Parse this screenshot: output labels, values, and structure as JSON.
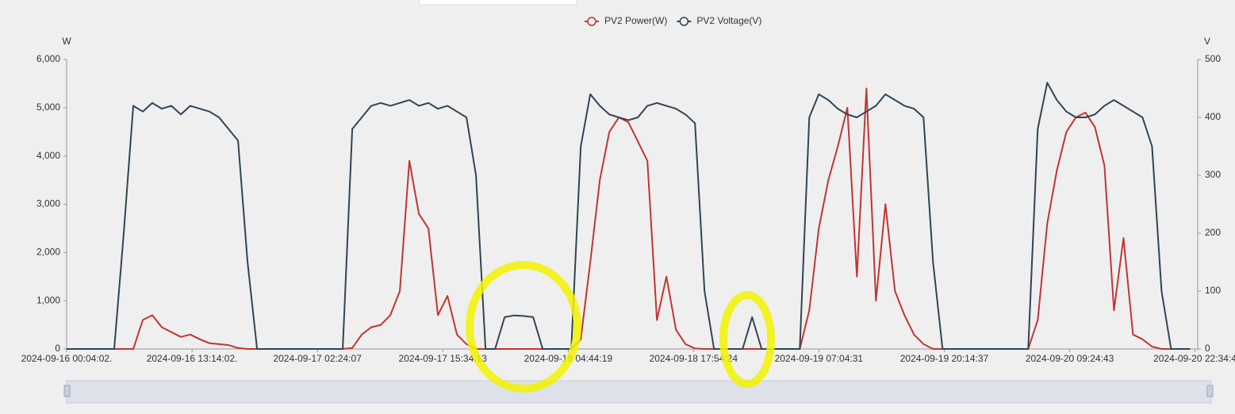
{
  "chart_data": {
    "type": "line",
    "legend_position": "top",
    "y_axis_label": "W",
    "y2_axis_label": "V",
    "x": [
      0,
      1,
      2,
      3,
      4,
      5,
      6,
      7,
      8,
      9,
      10,
      11,
      12,
      13,
      14,
      15,
      16,
      17,
      18,
      19,
      20,
      21,
      22,
      23,
      24,
      25,
      26,
      27,
      28,
      29,
      30,
      31,
      32,
      33,
      34,
      35,
      36,
      37,
      38,
      39,
      40,
      41,
      42,
      43,
      44,
      45,
      46,
      47,
      48,
      49,
      50,
      51,
      52,
      53,
      54,
      55,
      56,
      57,
      58,
      59,
      60,
      61,
      62,
      63,
      64,
      65,
      66,
      67,
      68,
      69,
      70,
      71,
      72,
      73,
      74,
      75,
      76,
      77,
      78,
      79,
      80,
      81,
      82,
      83,
      84,
      85,
      86,
      87,
      88,
      89,
      90,
      91,
      92,
      93,
      94,
      95,
      96,
      97,
      98,
      99,
      100,
      101,
      102,
      103,
      104,
      105,
      106,
      107,
      108,
      109,
      110,
      111,
      112,
      113,
      114,
      115,
      116,
      117,
      118
    ],
    "xlim": [
      0,
      118.8
    ],
    "xticks": [
      {
        "value": 0,
        "label": "2024-09-16 00:04:02."
      },
      {
        "value": 13.17,
        "label": "2024-09-16 13:14:02."
      },
      {
        "value": 26.34,
        "label": "2024-09-17 02:24:07"
      },
      {
        "value": 39.51,
        "label": "2024-09-17 15:34:13"
      },
      {
        "value": 52.68,
        "label": "2024-09-18 04:44:19"
      },
      {
        "value": 65.84,
        "label": "2024-09-18 17:54:24"
      },
      {
        "value": 79.01,
        "label": "2024-09-19 07:04:31"
      },
      {
        "value": 92.18,
        "label": "2024-09-19 20:14:37"
      },
      {
        "value": 105.35,
        "label": "2024-09-20 09:24:43"
      },
      {
        "value": 118.51,
        "label": "2024-09-20 22:34:4"
      }
    ],
    "ylim": [
      0,
      6000
    ],
    "yticks": [
      0,
      {
        "value": 1000,
        "label": "1,000"
      },
      {
        "value": 2000,
        "label": "2,000"
      },
      {
        "value": 3000,
        "label": "3,000"
      },
      {
        "value": 4000,
        "label": "4,000"
      },
      {
        "value": 5000,
        "label": "5,000"
      },
      {
        "value": 6000,
        "label": "6,000"
      }
    ],
    "y2lim": [
      0,
      500
    ],
    "y2ticks": [
      0,
      100,
      200,
      300,
      400,
      500
    ],
    "series": [
      {
        "name": "PV2 Power(W)",
        "color": "#c23531",
        "values": [
          0,
          0,
          0,
          0,
          0,
          0,
          0,
          0,
          600,
          700,
          450,
          350,
          250,
          300,
          200,
          120,
          100,
          80,
          20,
          0,
          0,
          0,
          0,
          0,
          0,
          0,
          0,
          0,
          0,
          0,
          20,
          300,
          450,
          500,
          700,
          1200,
          3900,
          2800,
          2500,
          700,
          1100,
          300,
          100,
          0,
          0,
          0,
          0,
          0,
          0,
          0,
          0,
          0,
          0,
          0,
          200,
          1800,
          3500,
          4500,
          4800,
          4700,
          4300,
          3900,
          600,
          1500,
          400,
          100,
          10,
          0,
          0,
          0,
          0,
          0,
          0,
          0,
          0,
          0,
          0,
          0,
          800,
          2500,
          3500,
          4200,
          5000,
          1500,
          5400,
          1000,
          3000,
          1200,
          700,
          300,
          100,
          0,
          0,
          0,
          0,
          0,
          0,
          0,
          0,
          0,
          0,
          0,
          600,
          2600,
          3700,
          4500,
          4800,
          4900,
          4600,
          3800,
          800,
          2300,
          300,
          200,
          50,
          0,
          0,
          0,
          0
        ]
      },
      {
        "name": "PV2 Voltage(V)",
        "color": "#2f4554",
        "axis": "y2",
        "values": [
          0,
          0,
          0,
          0,
          0,
          0,
          200,
          420,
          410,
          425,
          415,
          420,
          405,
          420,
          415,
          410,
          400,
          380,
          360,
          150,
          0,
          0,
          0,
          0,
          0,
          0,
          0,
          0,
          0,
          0,
          380,
          400,
          420,
          425,
          420,
          425,
          430,
          420,
          425,
          415,
          420,
          410,
          400,
          300,
          0,
          0,
          55,
          58,
          57,
          55,
          0,
          0,
          0,
          0,
          350,
          440,
          420,
          405,
          400,
          395,
          400,
          420,
          425,
          420,
          415,
          405,
          390,
          100,
          0,
          0,
          0,
          0,
          55,
          0,
          0,
          0,
          0,
          0,
          400,
          440,
          430,
          415,
          405,
          400,
          410,
          420,
          440,
          430,
          420,
          415,
          400,
          150,
          0,
          0,
          0,
          0,
          0,
          0,
          0,
          0,
          0,
          0,
          380,
          460,
          430,
          410,
          400,
          400,
          405,
          420,
          430,
          420,
          410,
          400,
          350,
          100,
          0,
          0,
          0
        ]
      }
    ]
  }
}
